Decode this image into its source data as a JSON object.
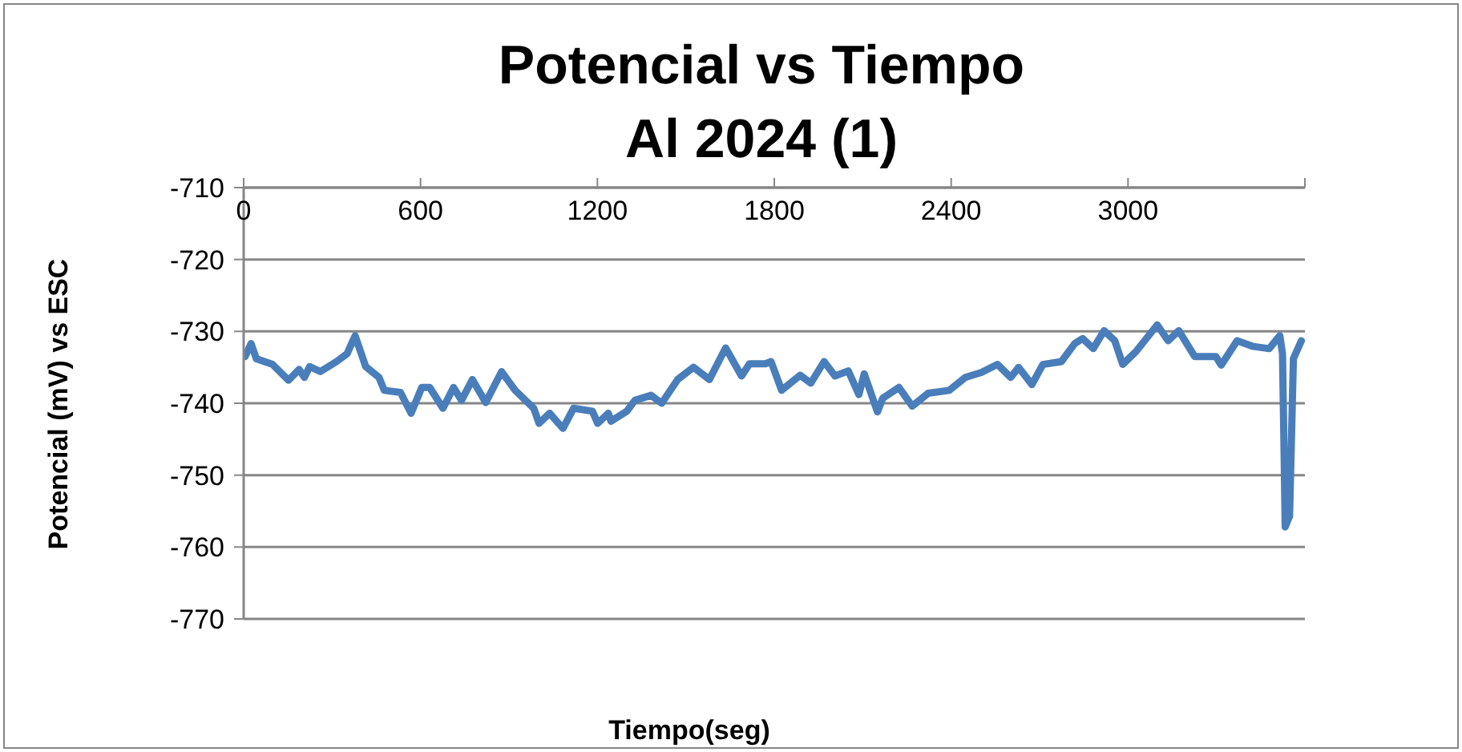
{
  "chart_data": {
    "type": "line",
    "title": "Potencial vs Tiempo",
    "subtitle": "Al 2024 (1)",
    "xlabel": "Tiempo(seg)",
    "ylabel": "Potencial (mV) vs ESC",
    "xlim": [
      0,
      3600
    ],
    "xticks": [
      0,
      600,
      1200,
      1800,
      2400,
      3000,
      {
        "value": 3600,
        "label": null
      }
    ],
    "ylim": [
      -770,
      -710
    ],
    "yticks": [
      -770,
      -760,
      -750,
      -740,
      -730,
      -720,
      -710
    ],
    "grid": "y",
    "legend": false,
    "marker": "none",
    "line_style": "solid",
    "series": [
      {
        "color": "#4a7ebb",
        "x": [
          5,
          25,
          43,
          98,
          152,
          188,
          206,
          224,
          260,
          315,
          351,
          378,
          414,
          459,
          477,
          532,
          568,
          604,
          631,
          676,
          712,
          739,
          776,
          821,
          875,
          921,
          984,
          1002,
          1038,
          1083,
          1119,
          1183,
          1201,
          1237,
          1246,
          1300,
          1327,
          1382,
          1418,
          1472,
          1526,
          1580,
          1635,
          1689,
          1716,
          1770,
          1789,
          1825,
          1888,
          1924,
          1969,
          2006,
          2051,
          2087,
          2105,
          2150,
          2168,
          2223,
          2268,
          2322,
          2394,
          2448,
          2503,
          2557,
          2602,
          2629,
          2674,
          2711,
          2774,
          2819,
          2846,
          2882,
          2919,
          2955,
          2982,
          3027,
          3099,
          3136,
          3172,
          3226,
          3298,
          3316,
          3370,
          3425,
          3479,
          3515,
          3524,
          3530,
          3533,
          3548,
          3561,
          3588
        ],
        "values": [
          -733.5,
          -731.7,
          -733.8,
          -734.6,
          -736.8,
          -735.3,
          -736.4,
          -734.9,
          -735.6,
          -734.2,
          -733.1,
          -730.6,
          -734.9,
          -736.4,
          -738.2,
          -738.5,
          -741.4,
          -737.8,
          -737.8,
          -740.7,
          -737.8,
          -739.6,
          -736.7,
          -739.9,
          -735.6,
          -738.2,
          -740.7,
          -742.8,
          -741.4,
          -743.5,
          -740.7,
          -741.1,
          -742.8,
          -741.4,
          -742.5,
          -741.1,
          -739.6,
          -738.9,
          -740.0,
          -736.7,
          -735.0,
          -736.7,
          -732.3,
          -736.2,
          -734.5,
          -734.5,
          -734.2,
          -738.2,
          -736.1,
          -737.2,
          -734.2,
          -736.2,
          -735.5,
          -738.8,
          -735.9,
          -741.2,
          -739.3,
          -737.8,
          -740.4,
          -738.6,
          -738.2,
          -736.4,
          -735.7,
          -734.6,
          -736.4,
          -735.0,
          -737.4,
          -734.6,
          -734.2,
          -731.7,
          -731.0,
          -732.4,
          -729.9,
          -731.3,
          -734.6,
          -732.8,
          -729.1,
          -731.3,
          -729.9,
          -733.5,
          -733.5,
          -734.7,
          -731.3,
          -732.1,
          -732.4,
          -730.6,
          -733.1,
          -748.4,
          -757.2,
          -755.7,
          -733.8,
          -731.3
        ]
      }
    ]
  }
}
